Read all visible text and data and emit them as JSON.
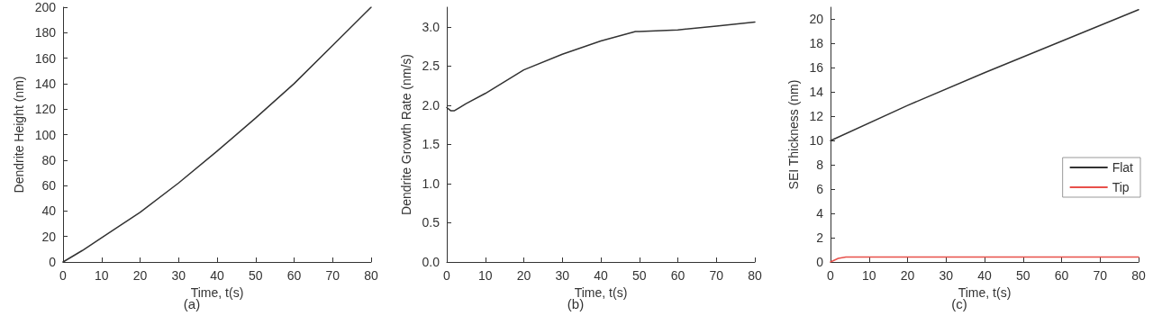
{
  "chart_data": [
    {
      "type": "line",
      "xlabel": "Time, t(s)",
      "ylabel": "Dendrite Height (nm)",
      "annotations": [
        "(a)"
      ],
      "xlim": [
        0,
        80
      ],
      "xticks": [
        0,
        10,
        20,
        30,
        40,
        50,
        60,
        70,
        80
      ],
      "ylim": [
        0,
        200
      ],
      "yticks": [
        0,
        20,
        40,
        60,
        80,
        100,
        120,
        140,
        160,
        180,
        200
      ],
      "grid": false,
      "legend": false,
      "marker": "none",
      "series": [
        {
          "color": "#333333",
          "x": [
            0,
            5,
            10,
            20,
            30,
            40,
            50,
            60,
            70,
            80
          ],
          "values": [
            0,
            9,
            19,
            39,
            62,
            87,
            113,
            140,
            170,
            200
          ]
        }
      ]
    },
    {
      "type": "line",
      "xlabel": "Time, t(s)",
      "ylabel": "Dendrite Growth Rate (nm/s)",
      "annotations": [
        "(b)"
      ],
      "xlim": [
        0,
        80
      ],
      "xticks": [
        0,
        10,
        20,
        30,
        40,
        50,
        60,
        70,
        80
      ],
      "ylim": [
        0,
        3.25
      ],
      "yticks": [
        {
          "value": 0,
          "label": "0.0"
        },
        0.5,
        {
          "value": 1,
          "label": "1.0"
        },
        1.5,
        {
          "value": 2,
          "label": "2.0"
        },
        2.5,
        {
          "value": 3,
          "label": "3.0"
        }
      ],
      "grid": false,
      "legend": false,
      "marker": "none",
      "series": [
        {
          "color": "#333333",
          "x": [
            0,
            1,
            2,
            5,
            10,
            20,
            30,
            40,
            49,
            50,
            60,
            70,
            80
          ],
          "values": [
            1.97,
            1.93,
            1.93,
            2.02,
            2.15,
            2.45,
            2.65,
            2.82,
            2.94,
            2.94,
            2.96,
            3.01,
            3.06
          ]
        }
      ]
    },
    {
      "type": "line",
      "xlabel": "Time, t(s)",
      "ylabel": "SEI Thickness (nm)",
      "annotations": [
        "(c)"
      ],
      "xlim": [
        0,
        80
      ],
      "xticks": [
        0,
        10,
        20,
        30,
        40,
        50,
        60,
        70,
        80
      ],
      "ylim": [
        0,
        21
      ],
      "yticks": [
        0,
        2,
        4,
        6,
        8,
        10,
        12,
        14,
        16,
        18,
        20
      ],
      "grid": false,
      "legend": "right",
      "marker": "none",
      "series": [
        {
          "name": "Flat",
          "color": "#333333",
          "x": [
            0,
            20,
            40,
            60,
            80
          ],
          "values": [
            10,
            12.9,
            15.6,
            18.2,
            20.8
          ]
        },
        {
          "name": "Tip",
          "color": "#e8504a",
          "x": [
            0,
            2,
            4,
            10,
            80
          ],
          "values": [
            0,
            0.3,
            0.4,
            0.4,
            0.4
          ]
        }
      ]
    }
  ]
}
